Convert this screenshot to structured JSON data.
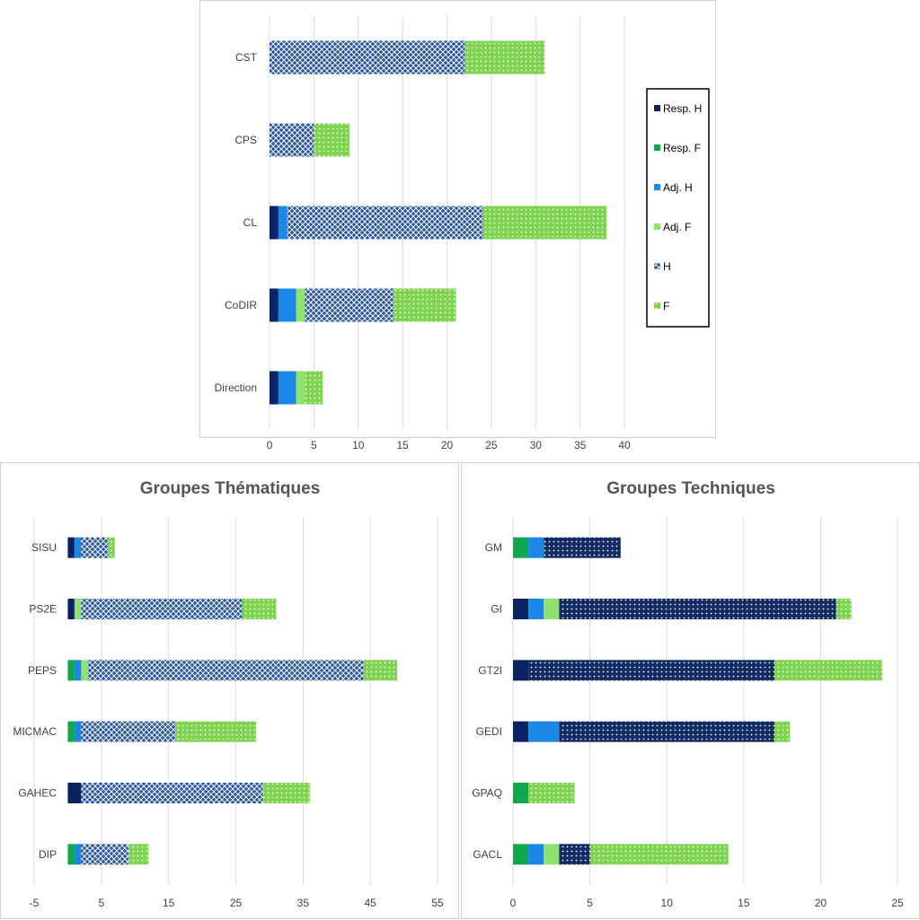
{
  "colors": {
    "resp_h": "#0b2461",
    "resp_f": "#10a84e",
    "adj_h": "#1c88e6",
    "adj_f": "#8ee36f",
    "h": "#2b56a5",
    "h_dark": "#142b66",
    "f": "#7ed34f",
    "gridline": "#d9d9d9"
  },
  "chart_data": [
    {
      "type": "bar",
      "orientation": "horizontal",
      "stacked": true,
      "title": "",
      "categories": [
        "CST",
        "CPS",
        "CL",
        "CoDIR",
        "Direction"
      ],
      "xlim": [
        0,
        40
      ],
      "xticks": [
        0,
        5,
        10,
        15,
        20,
        25,
        30,
        35,
        40
      ],
      "grid": true,
      "legend_position": "right",
      "series": [
        {
          "name": "Resp. H",
          "key": "resp_h",
          "values": [
            0,
            0,
            1,
            1,
            1
          ]
        },
        {
          "name": "Resp. F",
          "key": "resp_f",
          "values": [
            0,
            0,
            0,
            0,
            0
          ]
        },
        {
          "name": "Adj. H",
          "key": "adj_h",
          "values": [
            0,
            0,
            1,
            2,
            2
          ]
        },
        {
          "name": "Adj. F",
          "key": "adj_f",
          "values": [
            0,
            0,
            0,
            1,
            1
          ]
        },
        {
          "name": "H",
          "key": "h",
          "values": [
            22,
            5,
            22,
            10,
            0
          ]
        },
        {
          "name": "F",
          "key": "f",
          "values": [
            9,
            4,
            14,
            7,
            2
          ]
        }
      ]
    },
    {
      "type": "bar",
      "orientation": "horizontal",
      "stacked": true,
      "title": "Groupes Thématiques",
      "categories": [
        "SISU",
        "PS2E",
        "PEPS",
        "MICMAC",
        "GAHEC",
        "DIP"
      ],
      "xlim": [
        -5,
        55
      ],
      "xticks": [
        -5,
        5,
        15,
        25,
        35,
        45,
        55
      ],
      "grid": true,
      "series": [
        {
          "name": "Resp. H",
          "key": "resp_h",
          "values": [
            1,
            1,
            0,
            0,
            2,
            0
          ]
        },
        {
          "name": "Resp. F",
          "key": "resp_f",
          "values": [
            0,
            0,
            1,
            1,
            0,
            1
          ]
        },
        {
          "name": "Adj. H",
          "key": "adj_h",
          "values": [
            1,
            0,
            1,
            1,
            0,
            1
          ]
        },
        {
          "name": "Adj. F",
          "key": "adj_f",
          "values": [
            0,
            1,
            1,
            0,
            0,
            0
          ]
        },
        {
          "name": "H",
          "key": "h",
          "values": [
            4,
            24,
            41,
            14,
            27,
            7
          ]
        },
        {
          "name": "F",
          "key": "f",
          "values": [
            1,
            5,
            5,
            12,
            7,
            3
          ]
        }
      ]
    },
    {
      "type": "bar",
      "orientation": "horizontal",
      "stacked": true,
      "title": "Groupes Techniques",
      "categories": [
        "GM",
        "GI",
        "GT2I",
        "GEDI",
        "GPAQ",
        "GACL"
      ],
      "xlim": [
        0,
        25
      ],
      "xticks": [
        0,
        5,
        10,
        15,
        20,
        25
      ],
      "grid": true,
      "series": [
        {
          "name": "Resp. H",
          "key": "resp_h",
          "values": [
            0,
            1,
            1,
            1,
            0,
            0
          ]
        },
        {
          "name": "Resp. F",
          "key": "resp_f",
          "values": [
            1,
            0,
            0,
            0,
            1,
            1
          ]
        },
        {
          "name": "Adj. H",
          "key": "adj_h",
          "values": [
            1,
            1,
            0,
            2,
            0,
            1
          ]
        },
        {
          "name": "Adj. F",
          "key": "adj_f",
          "values": [
            0,
            1,
            0,
            0,
            0,
            1
          ]
        },
        {
          "name": "H",
          "key": "h_dark",
          "values": [
            5,
            18,
            16,
            14,
            0,
            2
          ]
        },
        {
          "name": "F",
          "key": "f",
          "values": [
            0,
            1,
            7,
            1,
            3,
            9
          ]
        }
      ]
    }
  ]
}
